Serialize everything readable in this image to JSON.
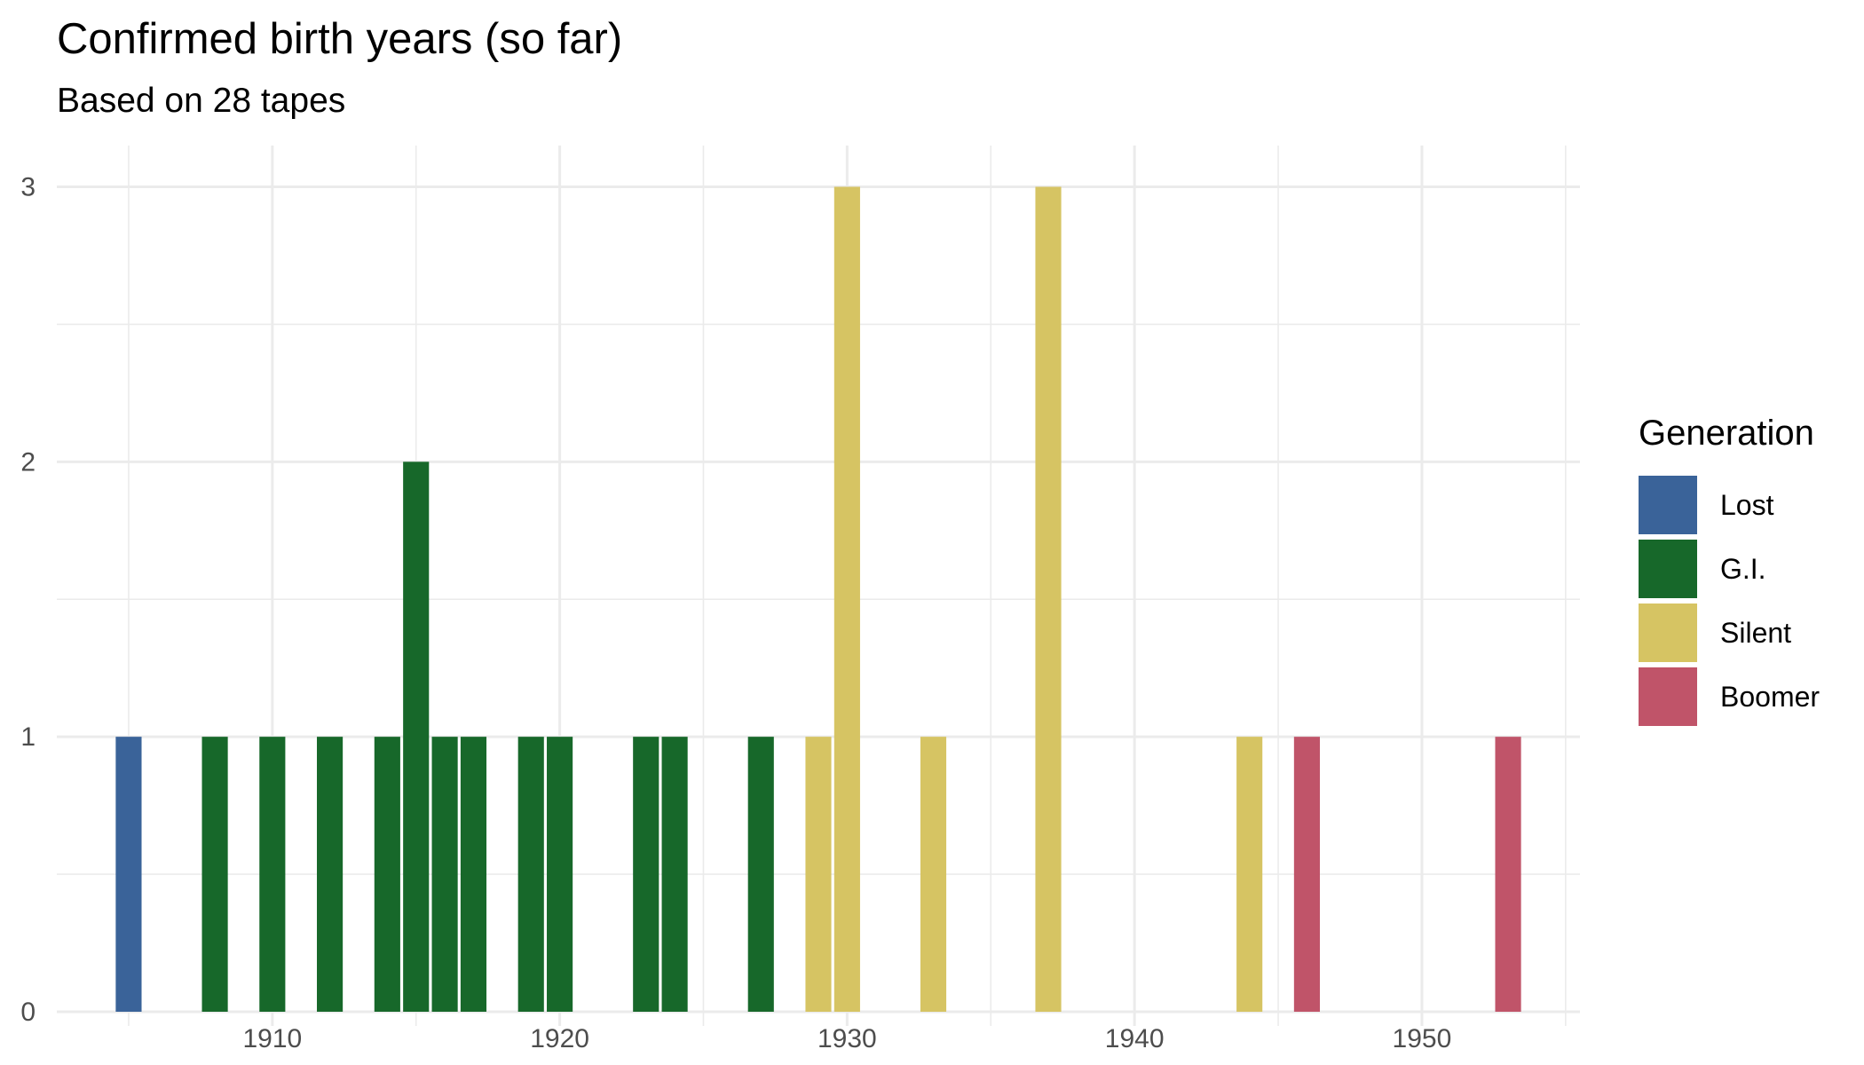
{
  "chart_data": {
    "type": "bar",
    "title": "Confirmed birth years (so far)",
    "subtitle": "Based on 28 tapes",
    "xlabel": "",
    "ylabel": "",
    "xlim": [
      1902.5,
      1955.5
    ],
    "ylim": [
      0,
      3.15
    ],
    "x_ticks": [
      1910,
      1920,
      1930,
      1940,
      1950
    ],
    "y_ticks": [
      0,
      1,
      2,
      3
    ],
    "grid": true,
    "legend": {
      "title": "Generation",
      "position": "right",
      "entries": [
        {
          "name": "Lost",
          "color": "#3a6399"
        },
        {
          "name": "G.I.",
          "color": "#17682a"
        },
        {
          "name": "Silent",
          "color": "#d6c463"
        },
        {
          "name": "Boomer",
          "color": "#c05469"
        }
      ]
    },
    "bars": [
      {
        "x": 1905,
        "value": 1,
        "generation": "Lost"
      },
      {
        "x": 1908,
        "value": 1,
        "generation": "G.I."
      },
      {
        "x": 1910,
        "value": 1,
        "generation": "G.I."
      },
      {
        "x": 1912,
        "value": 1,
        "generation": "G.I."
      },
      {
        "x": 1914,
        "value": 1,
        "generation": "G.I."
      },
      {
        "x": 1915,
        "value": 2,
        "generation": "G.I."
      },
      {
        "x": 1916,
        "value": 1,
        "generation": "G.I."
      },
      {
        "x": 1917,
        "value": 1,
        "generation": "G.I."
      },
      {
        "x": 1919,
        "value": 1,
        "generation": "G.I."
      },
      {
        "x": 1920,
        "value": 1,
        "generation": "G.I."
      },
      {
        "x": 1923,
        "value": 1,
        "generation": "G.I."
      },
      {
        "x": 1924,
        "value": 1,
        "generation": "G.I."
      },
      {
        "x": 1927,
        "value": 1,
        "generation": "G.I."
      },
      {
        "x": 1929,
        "value": 1,
        "generation": "Silent"
      },
      {
        "x": 1930,
        "value": 3,
        "generation": "Silent"
      },
      {
        "x": 1933,
        "value": 1,
        "generation": "Silent"
      },
      {
        "x": 1937,
        "value": 3,
        "generation": "Silent"
      },
      {
        "x": 1944,
        "value": 1,
        "generation": "Silent"
      },
      {
        "x": 1946,
        "value": 1,
        "generation": "Boomer"
      },
      {
        "x": 1953,
        "value": 1,
        "generation": "Boomer"
      }
    ]
  }
}
